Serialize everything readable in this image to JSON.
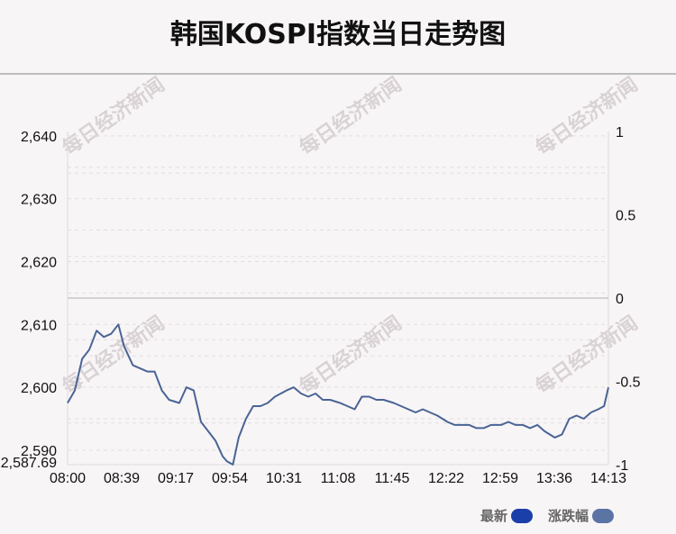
{
  "title": "韩国KOSPI指数当日走势图",
  "watermark": "每日经济新闻",
  "legend": {
    "latest_label": "最新",
    "latest_color": "#1a3fa8",
    "change_label": "涨跌幅",
    "change_color": "#5c74a4"
  },
  "chart_data": {
    "type": "line",
    "title": "韩国KOSPI指数当日走势图",
    "x_ticks": [
      "08:00",
      "08:39",
      "09:17",
      "09:54",
      "10:31",
      "11:08",
      "11:45",
      "12:22",
      "12:59",
      "13:36",
      "14:13"
    ],
    "y_left_ticks": [
      "2,640",
      "2,630",
      "2,620",
      "2,610",
      "2,600",
      "2,590",
      "2,587.69"
    ],
    "y_right_ticks": [
      "1",
      "0.5",
      "0",
      "-0.5",
      "-1"
    ],
    "ylim": [
      2587.69,
      2640.69
    ],
    "y_right_lim": [
      -1,
      1
    ],
    "grid": true,
    "legend_position": "bottom-right",
    "line_color": "#4a6496",
    "series": [
      {
        "name": "最新",
        "x": [
          "08:00",
          "08:05",
          "08:10",
          "08:15",
          "08:20",
          "08:25",
          "08:30",
          "08:35",
          "08:39",
          "08:45",
          "08:50",
          "08:55",
          "09:00",
          "09:05",
          "09:10",
          "09:17",
          "09:22",
          "09:27",
          "09:32",
          "09:37",
          "09:42",
          "09:47",
          "09:50",
          "09:54",
          "09:58",
          "10:03",
          "10:08",
          "10:13",
          "10:18",
          "10:23",
          "10:31",
          "10:36",
          "10:41",
          "10:46",
          "10:51",
          "10:56",
          "11:01",
          "11:08",
          "11:13",
          "11:18",
          "11:23",
          "11:28",
          "11:33",
          "11:38",
          "11:45",
          "11:50",
          "11:55",
          "12:00",
          "12:05",
          "12:10",
          "12:15",
          "12:22",
          "12:27",
          "12:32",
          "12:37",
          "12:42",
          "12:47",
          "12:52",
          "12:59",
          "13:04",
          "13:09",
          "13:14",
          "13:19",
          "13:24",
          "13:29",
          "13:36",
          "13:41",
          "13:46",
          "13:51",
          "13:56",
          "14:01",
          "14:06",
          "14:10",
          "14:13"
        ],
        "values": [
          2597.5,
          2599.5,
          2604.5,
          2606.0,
          2609.0,
          2608.0,
          2608.5,
          2610.0,
          2606.5,
          2603.5,
          2603.0,
          2602.5,
          2602.5,
          2599.5,
          2598.0,
          2597.5,
          2600.0,
          2599.5,
          2594.5,
          2593.0,
          2591.5,
          2589.0,
          2588.2,
          2587.7,
          2592.0,
          2595.0,
          2597.0,
          2597.0,
          2597.5,
          2598.5,
          2599.5,
          2600.0,
          2599.0,
          2598.5,
          2599.0,
          2598.0,
          2598.0,
          2597.5,
          2597.0,
          2596.5,
          2598.5,
          2598.5,
          2598.0,
          2598.0,
          2597.5,
          2597.0,
          2596.5,
          2596.0,
          2596.5,
          2596.0,
          2595.5,
          2594.5,
          2594.0,
          2594.0,
          2594.0,
          2593.5,
          2593.5,
          2594.0,
          2594.0,
          2594.5,
          2594.0,
          2594.0,
          2593.5,
          2594.0,
          2593.0,
          2592.0,
          2592.5,
          2595.0,
          2595.5,
          2595.0,
          2596.0,
          2596.5,
          2597.0,
          2600.0
        ]
      }
    ]
  }
}
